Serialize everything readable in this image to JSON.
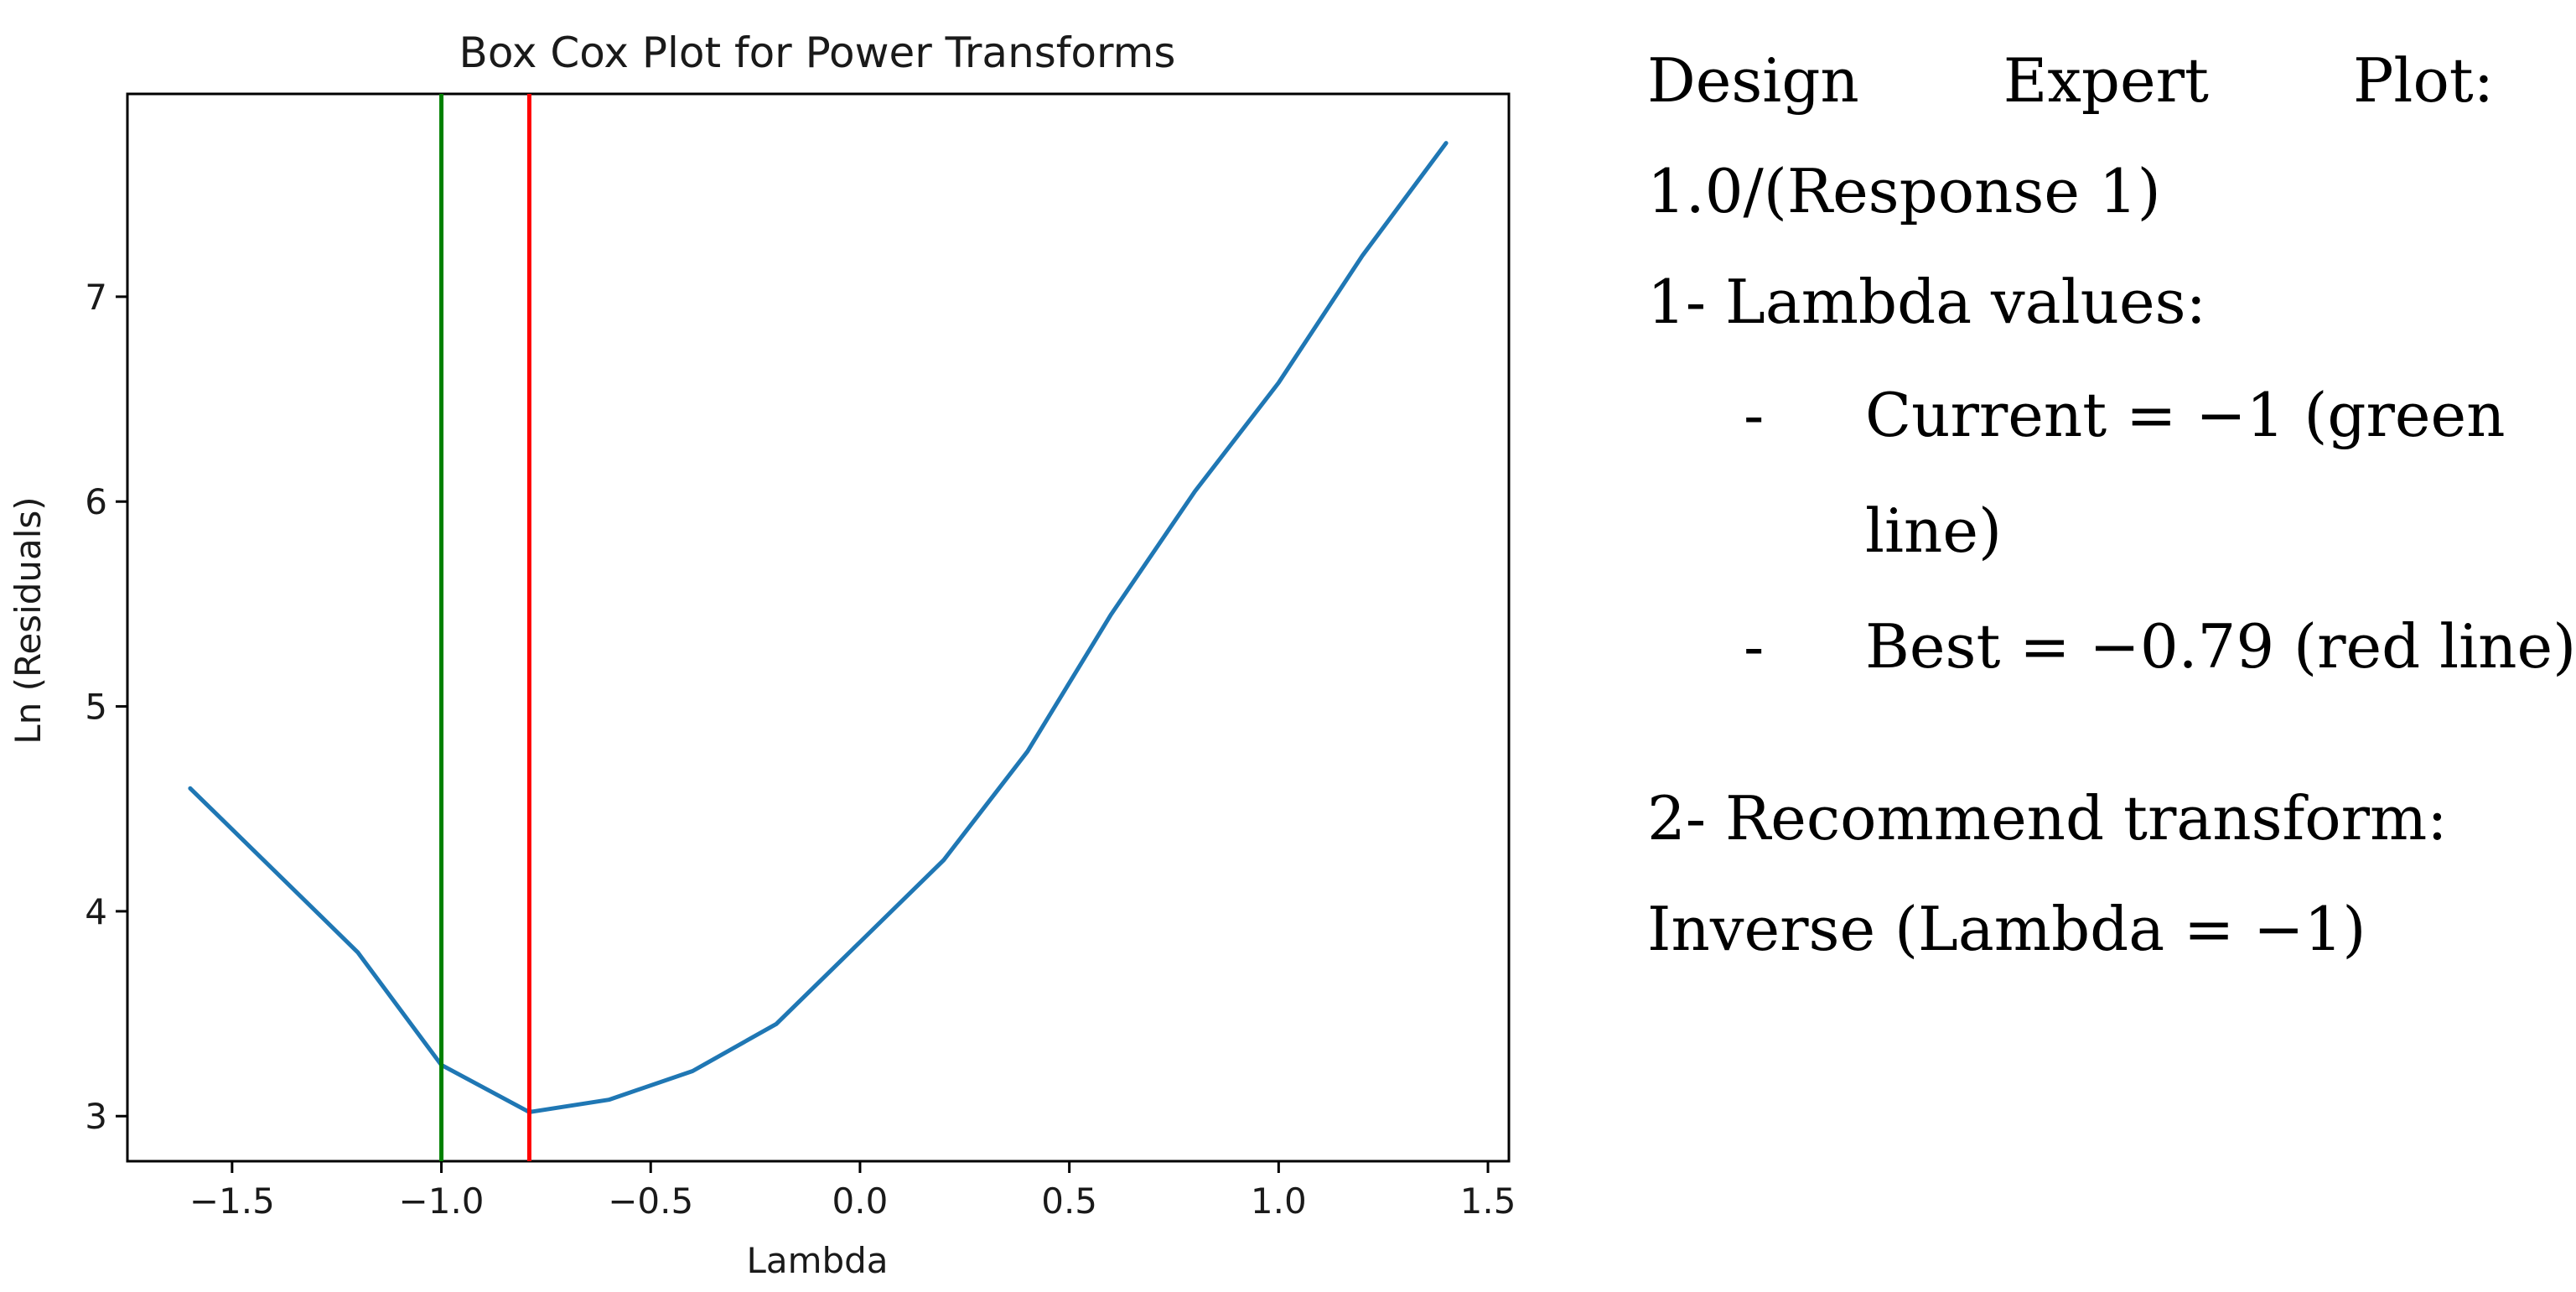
{
  "chart_data": {
    "type": "line",
    "title": "Box Cox Plot for Power Transforms",
    "xlabel": "Lambda",
    "ylabel": "Ln (Residuals)",
    "xlim": [
      -1.75,
      1.55
    ],
    "ylim": [
      2.78,
      7.99
    ],
    "xticks": [
      -1.5,
      -1.0,
      -0.5,
      0.0,
      0.5,
      1.0,
      1.5
    ],
    "xtick_labels": [
      "−1.5",
      "−1.0",
      "−0.5",
      "0.0",
      "0.5",
      "1.0",
      "1.5"
    ],
    "yticks": [
      3,
      4,
      5,
      6,
      7
    ],
    "ytick_labels": [
      "3",
      "4",
      "5",
      "6",
      "7"
    ],
    "grid": false,
    "series": [
      {
        "color": "#1f77b4",
        "x": [
          -1.6,
          -1.4,
          -1.2,
          -1.0,
          -0.79,
          -0.6,
          -0.4,
          -0.2,
          0.0,
          0.2,
          0.4,
          0.6,
          0.8,
          1.0,
          1.2,
          1.4
        ],
        "y": [
          4.6,
          4.2,
          3.8,
          3.25,
          3.02,
          3.08,
          3.22,
          3.45,
          3.85,
          4.25,
          4.78,
          5.45,
          6.05,
          6.58,
          7.2,
          7.75
        ]
      }
    ],
    "vlines": [
      {
        "x": -1.0,
        "color": "#008000"
      },
      {
        "x": -0.79,
        "color": "#ff0000"
      }
    ]
  },
  "side_text": {
    "line1_words": [
      "Design",
      "Expert",
      "Plot:"
    ],
    "line2": "1.0/(Response 1)",
    "line3": "1- Lambda values:",
    "bullet1_dash": "-",
    "bullet1_line1": "Current = −1 (green",
    "bullet1_line2": "line)",
    "bullet2_dash": "-",
    "bullet2_text": "Best = −0.79 (red line)",
    "line4": "2- Recommend transform:",
    "line5": "Inverse (Lambda = −1)"
  }
}
